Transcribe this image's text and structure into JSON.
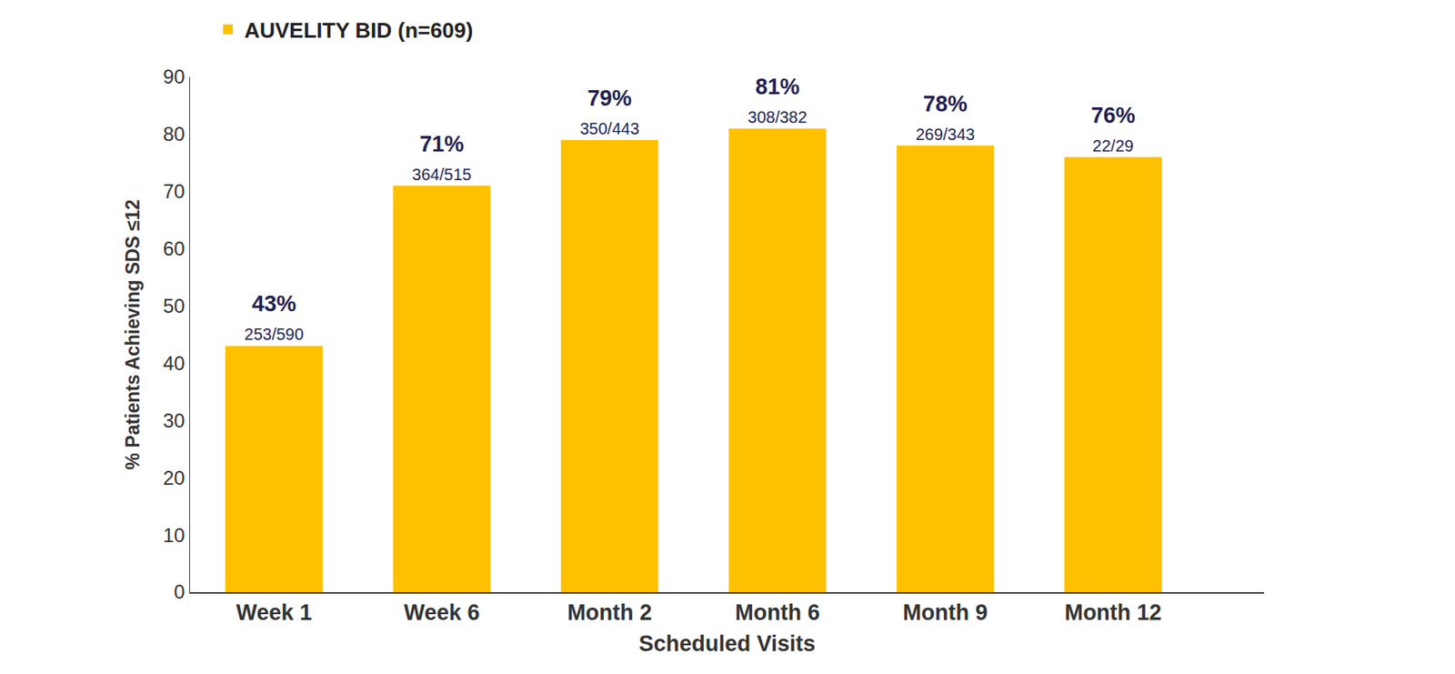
{
  "chart_data": {
    "type": "bar",
    "categories": [
      "Week 1",
      "Week 6",
      "Month 2",
      "Month 6",
      "Month 9",
      "Month 12"
    ],
    "series": [
      {
        "name": "AUVELITY BID (n=609)",
        "color": "#FFC000",
        "values": [
          43,
          71,
          79,
          81,
          78,
          76
        ],
        "value_labels": [
          "43%",
          "71%",
          "79%",
          "81%",
          "78%",
          "76%"
        ],
        "counts": [
          "253/590",
          "364/515",
          "350/443",
          "308/382",
          "269/343",
          "22/29"
        ]
      }
    ],
    "x_label": "Scheduled Visits",
    "y_label": "% Patients Achieving SDS ≤12",
    "ylim": [
      0,
      90
    ],
    "yticks": [
      0,
      10,
      20,
      30,
      40,
      50,
      60,
      70,
      80,
      90
    ],
    "grid": false,
    "legend": "upper left",
    "data_labels": true
  }
}
